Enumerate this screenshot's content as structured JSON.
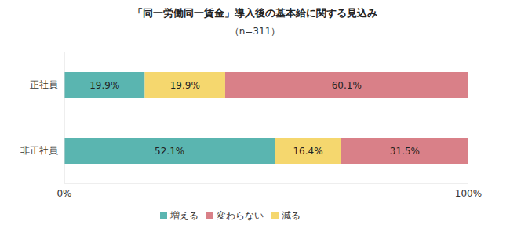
{
  "chart_data": {
    "type": "bar",
    "title": "「同一労働同一賃金」導入後の基本給に関する見込み",
    "subtitle": "（n=311）",
    "orientation": "horizontal",
    "stacked": true,
    "data_labels": true,
    "legend": "bottom",
    "grid": false,
    "categories": [
      "正社員",
      "非正社員"
    ],
    "series": [
      {
        "name": "増える",
        "color": "#5ab5b0",
        "values": [
          19.9,
          52.1
        ],
        "value_labels": [
          "19.9%",
          "52.1%"
        ]
      },
      {
        "name": "減る",
        "color": "#f5d76e",
        "values": [
          19.9,
          16.4
        ],
        "value_labels": [
          "19.9%",
          "16.4%"
        ]
      },
      {
        "name": "変わらない",
        "color": "#d98088",
        "values": [
          60.1,
          31.5
        ],
        "value_labels": [
          "60.1%",
          "31.5%"
        ]
      }
    ],
    "xlim": [
      0,
      100
    ],
    "xticks": [
      {
        "value": 0,
        "label": "0%"
      },
      {
        "value": 100,
        "label": "100%"
      }
    ]
  }
}
